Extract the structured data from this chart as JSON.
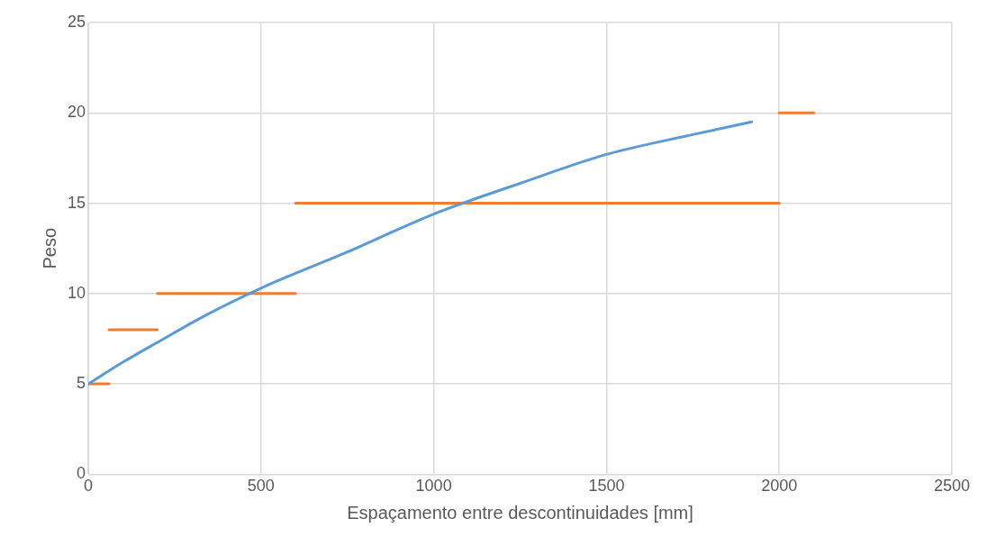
{
  "chart_data": {
    "type": "line",
    "xlabel": "Espaçamento entre descontinuidades [mm]",
    "ylabel": "Peso",
    "xlim": [
      0,
      2500
    ],
    "xticks": [
      0,
      500,
      1000,
      1500,
      2000,
      2500
    ],
    "ylim": [
      0,
      25
    ],
    "yticks": [
      0,
      5,
      10,
      15,
      20,
      25
    ],
    "grid": true,
    "marker": "none",
    "line_style": "solid",
    "series": [
      {
        "color": "#5b9bd5",
        "x": [
          0,
          100,
          200,
          350,
          500,
          750,
          1000,
          1250,
          1500,
          1750,
          1920
        ],
        "values": [
          5,
          6.2,
          7.3,
          8.9,
          10.3,
          12.3,
          14.4,
          16.1,
          17.7,
          18.8,
          19.5
        ]
      },
      {
        "color": "#ed7d31",
        "x": [
          0,
          60
        ],
        "values": [
          5,
          5
        ]
      },
      {
        "color": "#ed7d31",
        "x": [
          60,
          200
        ],
        "values": [
          8,
          8
        ]
      },
      {
        "color": "#ed7d31",
        "x": [
          200,
          600
        ],
        "values": [
          10,
          10
        ]
      },
      {
        "color": "#ed7d31",
        "x": [
          600,
          2000
        ],
        "values": [
          15,
          15
        ]
      },
      {
        "color": "#ed7d31",
        "x": [
          2000,
          2100
        ],
        "values": [
          20,
          20
        ]
      }
    ]
  }
}
